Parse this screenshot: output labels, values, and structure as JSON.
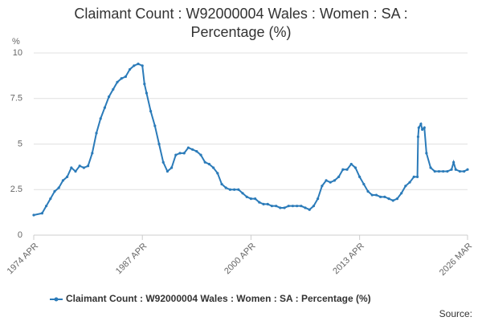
{
  "chart_data": {
    "type": "line",
    "title": "Claimant Count : W92000004 Wales : Women : SA : Percentage (%)",
    "y_axis_label": "%",
    "source_label": "Source:",
    "xlim": [
      "1974 APR",
      "2026 MAR"
    ],
    "xticks": [
      "1974 APR",
      "1987 APR",
      "2000 APR",
      "2013 APR",
      "2026 MAR"
    ],
    "ylim": [
      0,
      10
    ],
    "yticks": [
      0,
      2.5,
      5,
      7.5,
      10
    ],
    "grid": true,
    "x": [
      "1974 APR",
      "1975 APR",
      "1975 OCT",
      "1976 APR",
      "1976 OCT",
      "1977 APR",
      "1977 OCT",
      "1978 APR",
      "1978 OCT",
      "1979 APR",
      "1979 OCT",
      "1980 APR",
      "1980 OCT",
      "1981 APR",
      "1981 OCT",
      "1982 APR",
      "1982 OCT",
      "1983 APR",
      "1983 OCT",
      "1984 APR",
      "1984 OCT",
      "1985 APR",
      "1985 OCT",
      "1986 APR",
      "1986 OCT",
      "1987 APR",
      "1987 JUL",
      "1987 OCT",
      "1988 APR",
      "1988 OCT",
      "1989 APR",
      "1989 OCT",
      "1990 APR",
      "1990 OCT",
      "1991 APR",
      "1991 OCT",
      "1992 APR",
      "1992 OCT",
      "1993 APR",
      "1993 OCT",
      "1994 APR",
      "1994 OCT",
      "1995 APR",
      "1995 OCT",
      "1996 APR",
      "1996 OCT",
      "1997 APR",
      "1997 OCT",
      "1998 APR",
      "1998 OCT",
      "1999 APR",
      "1999 OCT",
      "2000 APR",
      "2000 OCT",
      "2001 APR",
      "2001 OCT",
      "2002 APR",
      "2002 OCT",
      "2003 APR",
      "2003 OCT",
      "2004 APR",
      "2004 OCT",
      "2005 APR",
      "2005 OCT",
      "2006 APR",
      "2006 OCT",
      "2007 APR",
      "2007 OCT",
      "2008 APR",
      "2008 OCT",
      "2009 APR",
      "2009 OCT",
      "2010 APR",
      "2010 OCT",
      "2011 APR",
      "2011 OCT",
      "2012 APR",
      "2012 OCT",
      "2013 APR",
      "2013 OCT",
      "2014 APR",
      "2014 OCT",
      "2015 APR",
      "2015 OCT",
      "2016 APR",
      "2016 OCT",
      "2017 APR",
      "2017 OCT",
      "2018 APR",
      "2018 OCT",
      "2019 APR",
      "2019 OCT",
      "2020 MAR",
      "2020 APR",
      "2020 MAY",
      "2020 AUG",
      "2020 OCT",
      "2021 JAN",
      "2021 APR",
      "2021 OCT",
      "2022 APR",
      "2022 OCT",
      "2023 APR",
      "2023 OCT",
      "2024 APR",
      "2024 JUL",
      "2024 OCT",
      "2025 APR",
      "2025 OCT",
      "2026 MAR"
    ],
    "series": [
      {
        "name": "Claimant Count : W92000004 Wales : Women : SA : Percentage (%)",
        "color": "#2b7bb9",
        "values": [
          1.1,
          1.2,
          1.6,
          2.0,
          2.4,
          2.6,
          3.0,
          3.2,
          3.7,
          3.5,
          3.8,
          3.7,
          3.8,
          4.5,
          5.6,
          6.4,
          7.0,
          7.6,
          8.0,
          8.4,
          8.6,
          8.7,
          9.1,
          9.3,
          9.4,
          9.3,
          8.3,
          7.8,
          6.8,
          6.0,
          5.0,
          4.0,
          3.5,
          3.7,
          4.4,
          4.5,
          4.5,
          4.8,
          4.7,
          4.6,
          4.4,
          4.0,
          3.9,
          3.7,
          3.4,
          2.8,
          2.6,
          2.5,
          2.5,
          2.5,
          2.3,
          2.1,
          2.0,
          2.0,
          1.8,
          1.7,
          1.7,
          1.6,
          1.6,
          1.5,
          1.5,
          1.6,
          1.6,
          1.6,
          1.6,
          1.5,
          1.4,
          1.6,
          2.0,
          2.7,
          3.0,
          2.9,
          3.0,
          3.2,
          3.6,
          3.6,
          3.9,
          3.7,
          3.2,
          2.8,
          2.4,
          2.2,
          2.2,
          2.1,
          2.1,
          2.0,
          1.9,
          2.0,
          2.3,
          2.7,
          2.9,
          3.2,
          3.2,
          5.4,
          5.9,
          6.1,
          5.8,
          5.9,
          4.5,
          3.7,
          3.5,
          3.5,
          3.5,
          3.5,
          3.6,
          4.0,
          3.6,
          3.5,
          3.5,
          3.6
        ]
      }
    ]
  }
}
